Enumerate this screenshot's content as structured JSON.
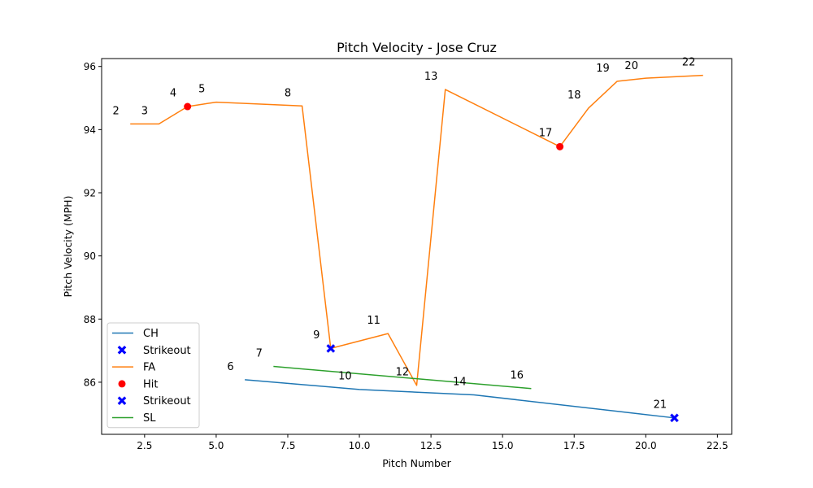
{
  "chart_data": {
    "type": "line",
    "title": "Pitch Velocity - Jose Cruz",
    "xlabel": "Pitch Number",
    "ylabel": "Pitch Velocity (MPH)",
    "xlim": [
      1.0,
      23.0
    ],
    "ylim": [
      84.35,
      96.25
    ],
    "xticks": [
      2.5,
      5.0,
      7.5,
      10.0,
      12.5,
      15.0,
      17.5,
      20.0,
      22.5
    ],
    "xtick_labels": [
      "2.5",
      "5.0",
      "7.5",
      "10.0",
      "12.5",
      "15.0",
      "17.5",
      "20.0",
      "22.5"
    ],
    "yticks": [
      86,
      88,
      90,
      92,
      94,
      96
    ],
    "ytick_labels": [
      "86",
      "88",
      "90",
      "92",
      "94",
      "96"
    ],
    "grid": false,
    "legend_position": "lower-left",
    "series": [
      {
        "name": "CH",
        "kind": "line",
        "color": "#1f77b4",
        "x": [
          6,
          10,
          14,
          21
        ],
        "y": [
          86.08,
          85.77,
          85.6,
          84.87
        ]
      },
      {
        "name": "Strikeout",
        "kind": "scatter",
        "marker": "x",
        "color": "#0000ff",
        "x": [
          21
        ],
        "y": [
          84.87
        ]
      },
      {
        "name": "FA",
        "kind": "line",
        "color": "#ff7f0e",
        "x": [
          2,
          3,
          4,
          5,
          8,
          9,
          11,
          12,
          13,
          17,
          18,
          19,
          20,
          22
        ],
        "y": [
          94.18,
          94.18,
          94.73,
          94.87,
          94.75,
          87.07,
          87.54,
          85.9,
          95.27,
          93.46,
          94.68,
          95.53,
          95.63,
          95.72
        ]
      },
      {
        "name": "Hit",
        "kind": "scatter",
        "marker": "circle",
        "color": "#ff0000",
        "x": [
          4,
          17
        ],
        "y": [
          94.73,
          93.46
        ]
      },
      {
        "name": "Strikeout",
        "kind": "scatter",
        "marker": "x",
        "color": "#0000ff",
        "x": [
          9
        ],
        "y": [
          87.07
        ]
      },
      {
        "name": "SL",
        "kind": "line",
        "color": "#2ca02c",
        "x": [
          7,
          16
        ],
        "y": [
          86.5,
          85.8
        ]
      }
    ],
    "point_labels": [
      {
        "text": "2",
        "x": 1.5,
        "y": 94.6
      },
      {
        "text": "3",
        "x": 2.5,
        "y": 94.6
      },
      {
        "text": "4",
        "x": 3.5,
        "y": 95.17
      },
      {
        "text": "5",
        "x": 4.5,
        "y": 95.3
      },
      {
        "text": "8",
        "x": 7.5,
        "y": 95.17
      },
      {
        "text": "9",
        "x": 8.5,
        "y": 87.5
      },
      {
        "text": "11",
        "x": 10.5,
        "y": 87.97
      },
      {
        "text": "12",
        "x": 11.5,
        "y": 86.33
      },
      {
        "text": "13",
        "x": 12.5,
        "y": 95.7
      },
      {
        "text": "17",
        "x": 16.5,
        "y": 93.9
      },
      {
        "text": "18",
        "x": 17.5,
        "y": 95.1
      },
      {
        "text": "19",
        "x": 18.5,
        "y": 95.96
      },
      {
        "text": "20",
        "x": 19.5,
        "y": 96.03
      },
      {
        "text": "22",
        "x": 21.5,
        "y": 96.15
      },
      {
        "text": "6",
        "x": 5.5,
        "y": 86.5
      },
      {
        "text": "7",
        "x": 6.5,
        "y": 86.93
      },
      {
        "text": "10",
        "x": 9.5,
        "y": 86.2
      },
      {
        "text": "14",
        "x": 13.5,
        "y": 86.03
      },
      {
        "text": "16",
        "x": 15.5,
        "y": 86.23
      },
      {
        "text": "21",
        "x": 20.5,
        "y": 85.3
      }
    ],
    "legend": [
      {
        "label": "CH",
        "kind": "line",
        "color": "#1f77b4"
      },
      {
        "label": "Strikeout",
        "kind": "x",
        "color": "#0000ff"
      },
      {
        "label": "FA",
        "kind": "line",
        "color": "#ff7f0e"
      },
      {
        "label": "Hit",
        "kind": "circle",
        "color": "#ff0000"
      },
      {
        "label": "Strikeout",
        "kind": "x",
        "color": "#0000ff"
      },
      {
        "label": "SL",
        "kind": "line",
        "color": "#2ca02c"
      }
    ]
  }
}
